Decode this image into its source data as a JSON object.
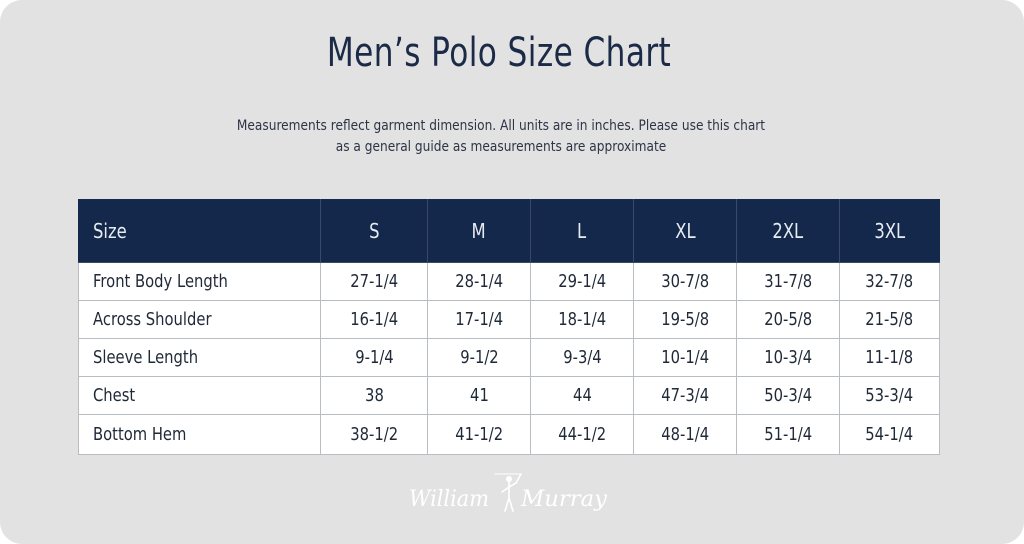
{
  "title": "Men’s Polo Size Chart",
  "subtitle": {
    "line1": "Measurements reflect garment dimension. All units are in inches. Please use this chart",
    "line2": "as a general guide as measurements are approximate"
  },
  "table": {
    "headers": [
      "Size",
      "S",
      "M",
      "L",
      "XL",
      "2XL",
      "3XL"
    ],
    "rows": [
      [
        "Front Body Length",
        "27-1/4",
        "28-1/4",
        "29-1/4",
        "30-7/8",
        "31-7/8",
        "32-7/8"
      ],
      [
        "Across Shoulder",
        "16-1/4",
        "17-1/4",
        "18-1/4",
        "19-5/8",
        "20-5/8",
        "21-5/8"
      ],
      [
        "Sleeve Length",
        "9-1/4",
        "9-1/2",
        "9-3/4",
        "10-1/4",
        "10-3/4",
        "11-1/8"
      ],
      [
        "Chest",
        "38",
        "41",
        "44",
        "47-3/4",
        "50-3/4",
        "53-3/4"
      ],
      [
        "Bottom Hem",
        "38-1/2",
        "41-1/2",
        "44-1/2",
        "48-1/4",
        "51-1/4",
        "54-1/4"
      ]
    ]
  },
  "logo": {
    "text_left": "William",
    "text_right": "Murray",
    "icon": "golfer-icon"
  },
  "colors": {
    "background": "#e2e2e3",
    "header": "#13284a",
    "text": "#1b2a47"
  }
}
